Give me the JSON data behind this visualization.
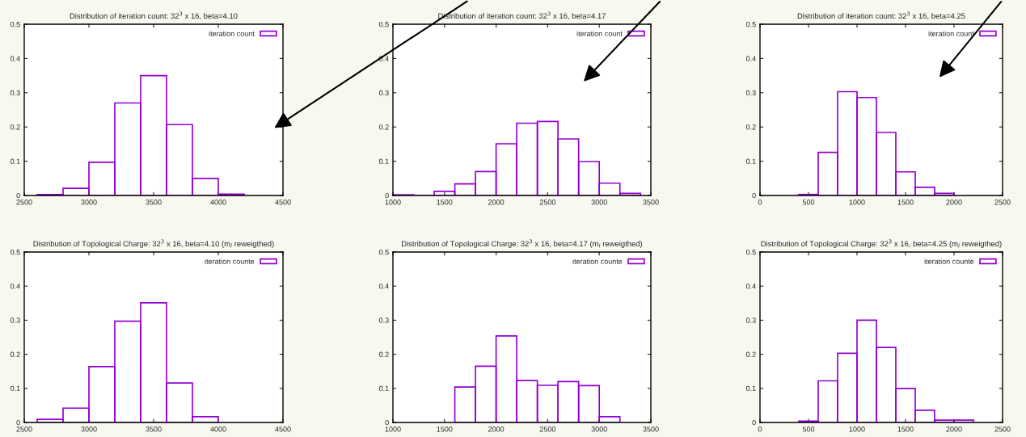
{
  "chart_data": [
    {
      "type": "histogram",
      "title": "Distribution of iteration count: 32$^{3}$ x 16, beta=4.10",
      "bins": [
        2600,
        2800,
        3000,
        3200,
        3400,
        3600,
        3800,
        4000,
        4200
      ],
      "series": [
        {
          "name": "iteration count",
          "color": "#9400d3",
          "values": [
            0.003,
            0.021,
            0.097,
            0.27,
            0.35,
            0.207,
            0.05,
            0.004
          ]
        }
      ],
      "xlim": [
        2500,
        4500
      ],
      "xticks": [
        2500,
        3000,
        3500,
        4000,
        4500
      ],
      "ylim": [
        0,
        0.5
      ],
      "yticks": [
        0,
        0.1,
        0.2,
        0.3,
        0.4,
        0.5
      ],
      "legend": "top right"
    },
    {
      "type": "histogram",
      "title": "Distribution of iteration count: 32$^{3}$ x 16, beta=4.17",
      "bins": [
        1000,
        1200,
        1400,
        1600,
        1800,
        2000,
        2200,
        2400,
        2600,
        2800,
        3000,
        3200,
        3400
      ],
      "series": [
        {
          "name": "iteration count",
          "color": "#9400d3",
          "values": [
            0.002,
            0,
            0.012,
            0.034,
            0.07,
            0.151,
            0.211,
            0.216,
            0.165,
            0.099,
            0.036,
            0.006
          ]
        }
      ],
      "xlim": [
        1000,
        3500
      ],
      "xticks": [
        1000,
        1500,
        2000,
        2500,
        3000,
        3500
      ],
      "ylim": [
        0,
        0.5
      ],
      "yticks": [
        0,
        0.1,
        0.2,
        0.3,
        0.4,
        0.5
      ],
      "legend": "top right"
    },
    {
      "type": "histogram",
      "title": "Distribution of iteration count: 32$^{3}$ x 16, beta=4.25",
      "bins": [
        400,
        600,
        800,
        1000,
        1200,
        1400,
        1600,
        1800,
        2000,
        2200
      ],
      "series": [
        {
          "name": "iteration count",
          "color": "#9400d3",
          "values": [
            0.003,
            0.126,
            0.303,
            0.286,
            0.184,
            0.069,
            0.024,
            0.006,
            null
          ]
        }
      ],
      "xlim": [
        0,
        2500
      ],
      "xticks": [
        0,
        500,
        1000,
        1500,
        2000,
        2500
      ],
      "ylim": [
        0,
        0.5
      ],
      "yticks": [
        0,
        0.1,
        0.2,
        0.3,
        0.4,
        0.5
      ],
      "legend": "top right"
    },
    {
      "type": "histogram",
      "title": "Distribution of Topological Charge: 32$^{3}$ x 16, beta=4.10 (m$_{l}$ reweigthed)",
      "bins": [
        2600,
        2800,
        3000,
        3200,
        3400,
        3600,
        3800,
        4000,
        4200
      ],
      "series": [
        {
          "name": "iteration counte",
          "color": "#9400d3",
          "values": [
            0.009,
            0.042,
            0.164,
            0.297,
            0.351,
            0.116,
            0.017,
            null
          ]
        }
      ],
      "xlim": [
        2500,
        4500
      ],
      "xticks": [
        2500,
        3000,
        3500,
        4000,
        4500
      ],
      "ylim": [
        0,
        0.5
      ],
      "yticks": [
        0,
        0.1,
        0.2,
        0.3,
        0.4,
        0.5
      ],
      "legend": "top right"
    },
    {
      "type": "histogram",
      "title": "Distribution of Topological Charge: 32$^{3}$ x 16, beta=4.17 (m$_{l}$ reweigthed)",
      "bins": [
        1600,
        1800,
        2000,
        2200,
        2400,
        2600,
        2800,
        3000,
        3200
      ],
      "series": [
        {
          "name": "iteration counte",
          "color": "#9400d3",
          "values": [
            0.104,
            0.165,
            0.254,
            0.123,
            0.109,
            0.12,
            0.108,
            0.017
          ]
        }
      ],
      "xlim": [
        1000,
        3500
      ],
      "xticks": [
        1000,
        1500,
        2000,
        2500,
        3000,
        3500
      ],
      "ylim": [
        0,
        0.5
      ],
      "yticks": [
        0,
        0.1,
        0.2,
        0.3,
        0.4,
        0.5
      ],
      "legend": "top right"
    },
    {
      "type": "histogram",
      "title": "Distribution of Topological Charge: 32$^{3}$ x 16, beta=4.25 (m$_{l}$ reweigthed)",
      "bins": [
        400,
        600,
        800,
        1000,
        1200,
        1400,
        1600,
        1800,
        2000,
        2200
      ],
      "series": [
        {
          "name": "iteration counte",
          "color": "#9400d3",
          "values": [
            0.004,
            0.122,
            0.203,
            0.3,
            0.22,
            0.1,
            0.036,
            0.007,
            0.007
          ]
        }
      ],
      "xlim": [
        0,
        2500
      ],
      "xticks": [
        0,
        500,
        1000,
        1500,
        2000,
        2500
      ],
      "ylim": [
        0,
        0.5
      ],
      "yticks": [
        0,
        0.1,
        0.2,
        0.3,
        0.4,
        0.5
      ],
      "legend": "top right"
    }
  ]
}
